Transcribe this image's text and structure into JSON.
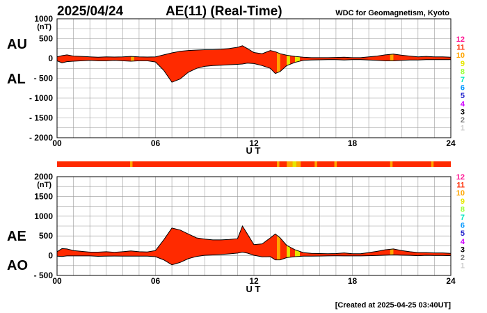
{
  "header": {
    "date": "2025/04/24",
    "title": "AE(11) (Real-Time)",
    "source": "WDC for Geomagnetism, Kyoto"
  },
  "footer": {
    "created": "[Created at 2025-04-25 03:40UT]"
  },
  "chart_data": [
    {
      "type": "area",
      "panel": "top",
      "series_labels": [
        "AU",
        "AL"
      ],
      "unit": "(nT)",
      "xlabel": "U T",
      "x_ticks": [
        "00",
        "06",
        "12",
        "18",
        "24"
      ],
      "xlim": [
        0,
        24
      ],
      "ylim": [
        -2000,
        1000
      ],
      "y_ticks": [
        "1000",
        "500",
        "0",
        "- 500",
        "- 1000",
        "- 1500",
        "- 2000"
      ],
      "y_tick_values": [
        1000,
        500,
        0,
        -500,
        -1000,
        -1500,
        -2000
      ],
      "upper_series": {
        "name": "AU",
        "x": [
          0,
          0.3,
          0.6,
          1,
          1.5,
          2,
          2.5,
          3,
          3.5,
          4,
          4.5,
          5,
          5.5,
          6,
          6.5,
          7,
          7.5,
          8,
          8.5,
          9,
          9.5,
          10,
          10.5,
          11,
          11.3,
          11.6,
          12,
          12.5,
          13,
          13.3,
          13.6,
          14,
          14.5,
          15,
          15.5,
          16,
          16.5,
          17,
          17.5,
          18,
          18.5,
          19,
          19.5,
          20,
          20.5,
          21,
          21.5,
          22,
          22.5,
          23,
          23.5,
          24
        ],
        "values": [
          40,
          70,
          90,
          60,
          50,
          40,
          30,
          40,
          35,
          40,
          50,
          40,
          35,
          40,
          90,
          140,
          180,
          200,
          210,
          220,
          220,
          230,
          250,
          280,
          320,
          250,
          150,
          120,
          200,
          170,
          120,
          80,
          50,
          30,
          20,
          20,
          20,
          25,
          30,
          20,
          20,
          40,
          60,
          90,
          110,
          80,
          60,
          40,
          50,
          40,
          40,
          30
        ]
      },
      "lower_series": {
        "name": "AL",
        "x": [
          0,
          0.3,
          0.6,
          1,
          1.5,
          2,
          2.5,
          3,
          3.5,
          4,
          4.5,
          5,
          5.5,
          6,
          6.5,
          7,
          7.5,
          8,
          8.5,
          9,
          9.5,
          10,
          10.5,
          11,
          11.3,
          11.6,
          12,
          12.5,
          13,
          13.3,
          13.6,
          14,
          14.5,
          15,
          15.5,
          16,
          16.5,
          17,
          17.5,
          18,
          18.5,
          19,
          19.5,
          20,
          20.5,
          21,
          21.5,
          22,
          22.5,
          23,
          23.5,
          24
        ],
        "values": [
          -60,
          -110,
          -80,
          -70,
          -60,
          -50,
          -60,
          -60,
          -50,
          -60,
          -70,
          -60,
          -60,
          -90,
          -300,
          -600,
          -520,
          -350,
          -250,
          -200,
          -180,
          -170,
          -160,
          -150,
          -140,
          -120,
          -130,
          -180,
          -250,
          -380,
          -330,
          -180,
          -100,
          -50,
          -40,
          -35,
          -30,
          -30,
          -40,
          -30,
          -30,
          -40,
          -50,
          -60,
          -60,
          -50,
          -40,
          -40,
          -30,
          -30,
          -30,
          -30
        ]
      },
      "activity_bands": [
        {
          "start": 4.5,
          "end": 4.7,
          "level": 10
        },
        {
          "start": 13.4,
          "end": 13.6,
          "level": 10
        },
        {
          "start": 14.0,
          "end": 14.2,
          "level": 9
        },
        {
          "start": 14.5,
          "end": 14.8,
          "level": 9
        },
        {
          "start": 20.3,
          "end": 20.5,
          "level": 10
        }
      ],
      "level_scale": [
        "12",
        "11",
        "10",
        "9",
        "8",
        "7",
        "6",
        "5",
        "4",
        "3",
        "2",
        "1"
      ]
    },
    {
      "type": "area",
      "panel": "bottom",
      "series_labels": [
        "AE",
        "AO"
      ],
      "unit": "(nT)",
      "xlabel": "U T",
      "x_ticks": [
        "00",
        "06",
        "12",
        "18",
        "24"
      ],
      "xlim": [
        0,
        24
      ],
      "ylim": [
        -500,
        2000
      ],
      "y_ticks": [
        "2000",
        "1500",
        "1000",
        "500",
        "0",
        "- 500"
      ],
      "y_tick_values": [
        2000,
        1500,
        1000,
        500,
        0,
        -500
      ],
      "upper_series": {
        "name": "AE",
        "x": [
          0,
          0.3,
          0.6,
          1,
          1.5,
          2,
          2.5,
          3,
          3.5,
          4,
          4.5,
          5,
          5.5,
          6,
          6.5,
          7,
          7.5,
          8,
          8.5,
          9,
          9.5,
          10,
          10.5,
          11,
          11.3,
          11.6,
          12,
          12.5,
          13,
          13.3,
          13.6,
          14,
          14.5,
          15,
          15.5,
          16,
          16.5,
          17,
          17.5,
          18,
          18.5,
          19,
          19.5,
          20,
          20.5,
          21,
          21.5,
          22,
          22.5,
          23,
          23.5,
          24
        ],
        "values": [
          100,
          180,
          170,
          130,
          110,
          90,
          90,
          100,
          85,
          100,
          120,
          100,
          95,
          130,
          400,
          700,
          650,
          550,
          450,
          420,
          400,
          400,
          410,
          430,
          750,
          550,
          280,
          300,
          450,
          550,
          450,
          260,
          150,
          80,
          60,
          55,
          50,
          55,
          70,
          50,
          50,
          80,
          110,
          150,
          170,
          130,
          100,
          80,
          80,
          70,
          70,
          60
        ]
      },
      "lower_series": {
        "name": "AO",
        "x": [
          0,
          0.3,
          0.6,
          1,
          1.5,
          2,
          2.5,
          3,
          3.5,
          4,
          4.5,
          5,
          5.5,
          6,
          6.5,
          7,
          7.5,
          8,
          8.5,
          9,
          9.5,
          10,
          10.5,
          11,
          11.3,
          11.6,
          12,
          12.5,
          13,
          13.3,
          13.6,
          14,
          14.5,
          15,
          15.5,
          16,
          16.5,
          17,
          17.5,
          18,
          18.5,
          19,
          19.5,
          20,
          20.5,
          21,
          21.5,
          22,
          22.5,
          23,
          23.5,
          24
        ],
        "values": [
          -10,
          -20,
          -5,
          -5,
          -5,
          -5,
          -15,
          -10,
          -8,
          -10,
          -10,
          -10,
          -12,
          -25,
          -105,
          -230,
          -170,
          -75,
          -20,
          10,
          20,
          30,
          45,
          65,
          90,
          65,
          10,
          -30,
          -25,
          -105,
          -105,
          -50,
          -25,
          -10,
          -10,
          -8,
          -5,
          -3,
          -5,
          -5,
          -5,
          0,
          5,
          15,
          25,
          15,
          10,
          0,
          10,
          5,
          5,
          0
        ]
      },
      "activity_bands": [
        {
          "start": 13.4,
          "end": 13.6,
          "level": 10
        },
        {
          "start": 14.0,
          "end": 14.2,
          "level": 9
        },
        {
          "start": 14.5,
          "end": 14.8,
          "level": 9
        },
        {
          "start": 20.3,
          "end": 20.5,
          "level": 10
        }
      ],
      "level_scale": [
        "12",
        "11",
        "10",
        "9",
        "8",
        "7",
        "6",
        "5",
        "4",
        "3",
        "2",
        "1"
      ]
    }
  ],
  "activity_strip": {
    "base_level": 11,
    "segments": [
      {
        "start": 4.45,
        "end": 4.6,
        "level": 10
      },
      {
        "start": 13.4,
        "end": 13.55,
        "level": 10
      },
      {
        "start": 14.0,
        "end": 14.35,
        "level": 10
      },
      {
        "start": 14.35,
        "end": 14.6,
        "level": 9
      },
      {
        "start": 14.6,
        "end": 14.85,
        "level": 10
      },
      {
        "start": 15.7,
        "end": 15.85,
        "level": 10
      },
      {
        "start": 16.9,
        "end": 17.05,
        "level": 10
      },
      {
        "start": 20.3,
        "end": 20.45,
        "level": 10
      },
      {
        "start": 22.8,
        "end": 22.95,
        "level": 10
      }
    ]
  },
  "level_colors": {
    "12": "#ff1493",
    "11": "#ff2a00",
    "10": "#ffa500",
    "9": "#e6e600",
    "8": "#99ff33",
    "7": "#00e5c0",
    "6": "#0096ff",
    "5": "#2222cc",
    "4": "#d000ff",
    "3": "#000000",
    "2": "#777777",
    "1": "#cccccc"
  },
  "colors": {
    "fill": "#ff2a00",
    "grid": "#999999",
    "outline": "#000000"
  }
}
